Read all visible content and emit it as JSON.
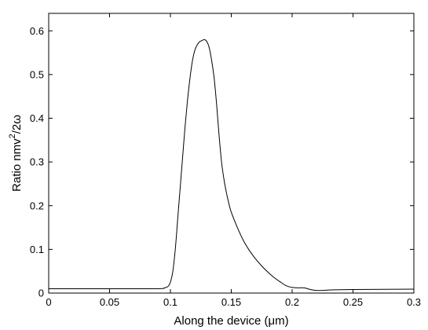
{
  "chart_data": {
    "type": "line",
    "title": "",
    "xlabel": "Along the device (μm)",
    "ylabel": {
      "main": "Ratio nmv",
      "superscript": "2",
      "suffix": "/2ω"
    },
    "xlim": [
      0,
      0.3
    ],
    "ylim": [
      0,
      0.64
    ],
    "xticks": [
      0,
      0.05,
      0.1,
      0.15,
      0.2,
      0.25,
      0.3
    ],
    "xtick_labels": [
      "0",
      "0.05",
      "0.1",
      "0.15",
      "0.2",
      "0.25",
      "0.3"
    ],
    "yticks": [
      0,
      0.1,
      0.2,
      0.3,
      0.4,
      0.5,
      0.6
    ],
    "ytick_labels": [
      "0",
      "0.1",
      "0.2",
      "0.3",
      "0.4",
      "0.5",
      "0.6"
    ],
    "grid": false,
    "series": [
      {
        "color": "#000000",
        "x": [
          0,
          0.05,
          0.09,
          0.095,
          0.098,
          0.1,
          0.102,
          0.104,
          0.106,
          0.108,
          0.11,
          0.112,
          0.114,
          0.116,
          0.118,
          0.12,
          0.122,
          0.124,
          0.126,
          0.128,
          0.13,
          0.132,
          0.134,
          0.136,
          0.138,
          0.14,
          0.142,
          0.144,
          0.146,
          0.148,
          0.15,
          0.155,
          0.16,
          0.165,
          0.17,
          0.175,
          0.18,
          0.185,
          0.19,
          0.195,
          0.2,
          0.205,
          0.21,
          0.215,
          0.22,
          0.225,
          0.23,
          0.25,
          0.3
        ],
        "y": [
          0.01,
          0.01,
          0.01,
          0.012,
          0.015,
          0.025,
          0.05,
          0.1,
          0.17,
          0.24,
          0.31,
          0.38,
          0.44,
          0.49,
          0.53,
          0.555,
          0.568,
          0.575,
          0.578,
          0.58,
          0.575,
          0.56,
          0.53,
          0.49,
          0.43,
          0.36,
          0.3,
          0.26,
          0.23,
          0.205,
          0.185,
          0.15,
          0.12,
          0.097,
          0.078,
          0.062,
          0.048,
          0.036,
          0.026,
          0.017,
          0.013,
          0.012,
          0.012,
          0.008,
          0.006,
          0.006,
          0.007,
          0.008,
          0.009
        ]
      }
    ]
  }
}
